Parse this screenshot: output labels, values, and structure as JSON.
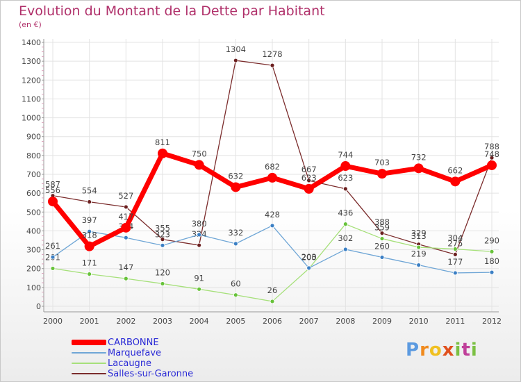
{
  "page": {
    "title": "Evolution du Montant de la Dette par Habitant",
    "subtitle": "(en €)",
    "brand": "Proxiti"
  },
  "chart_data": {
    "type": "line",
    "title": "Evolution du Montant de la Dette par Habitant",
    "subtitle": "(en €)",
    "x": [
      "2000",
      "2001",
      "2002",
      "2003",
      "2004",
      "2005",
      "2006",
      "2007",
      "2008",
      "2009",
      "2010",
      "2011",
      "2012"
    ],
    "ylim": [
      0,
      1400
    ],
    "yticks": [
      0,
      100,
      200,
      300,
      400,
      500,
      600,
      700,
      800,
      900,
      1000,
      1100,
      1200,
      1300,
      1400
    ],
    "grid": true,
    "legend_position": "bottom-left",
    "series": [
      {
        "name": "Salles-sur-Garonne",
        "color": "#7b2c2c",
        "values": [
          587,
          554,
          527,
          355,
          324,
          1304,
          1278,
          667,
          623,
          388,
          329,
          275,
          788
        ]
      },
      {
        "name": "Lacaugne",
        "color": "#a6e07a",
        "values": [
          201,
          171,
          147,
          120,
          91,
          60,
          26,
          200,
          436,
          359,
          313,
          304,
          290
        ]
      },
      {
        "name": "Marquefave",
        "color": "#6fa6d6",
        "values": [
          261,
          397,
          364,
          323,
          380,
          332,
          428,
          203,
          302,
          260,
          219,
          177,
          180
        ]
      },
      {
        "name": "CARBONNE",
        "color": "#ff0000",
        "values": [
          556,
          318,
          417,
          811,
          750,
          632,
          682,
          623,
          744,
          703,
          732,
          662,
          748
        ]
      }
    ],
    "legend_order": [
      "CARBONNE",
      "Marquefave",
      "Lacaugne",
      "Salles-sur-Garonne"
    ]
  }
}
